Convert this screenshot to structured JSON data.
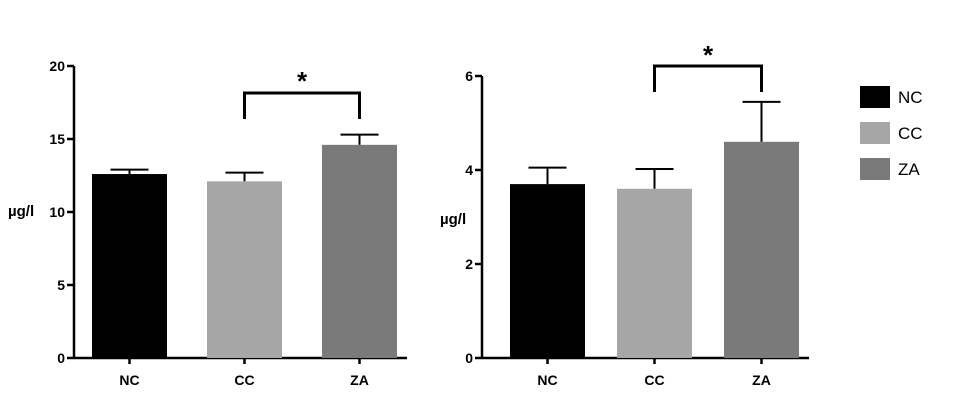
{
  "chart_data": [
    {
      "type": "bar",
      "categories": [
        "NC",
        "CC",
        "ZA"
      ],
      "values": [
        12.6,
        12.1,
        14.6
      ],
      "errors": [
        0.3,
        0.6,
        0.7
      ],
      "ylabel": "µg/l",
      "ylim": [
        0,
        20
      ],
      "yticks": [
        0,
        5,
        10,
        15,
        20
      ],
      "colors": [
        "#000000",
        "#a6a6a6",
        "#7a7a7a"
      ],
      "significance": {
        "from": "CC",
        "to": "ZA",
        "label": "*"
      },
      "grid": false
    },
    {
      "type": "bar",
      "categories": [
        "NC",
        "CC",
        "ZA"
      ],
      "values": [
        3.7,
        3.6,
        4.6
      ],
      "errors": [
        0.35,
        0.42,
        0.85
      ],
      "ylabel": "µg/l",
      "ylim": [
        0,
        6
      ],
      "yticks": [
        0,
        2,
        4,
        6
      ],
      "colors": [
        "#000000",
        "#a6a6a6",
        "#7a7a7a"
      ],
      "significance": {
        "from": "CC",
        "to": "ZA",
        "label": "*"
      },
      "grid": false
    }
  ],
  "legend": {
    "position": "right",
    "items": [
      {
        "label": "NC",
        "color": "#000000"
      },
      {
        "label": "CC",
        "color": "#a6a6a6"
      },
      {
        "label": "ZA",
        "color": "#7a7a7a"
      }
    ]
  }
}
